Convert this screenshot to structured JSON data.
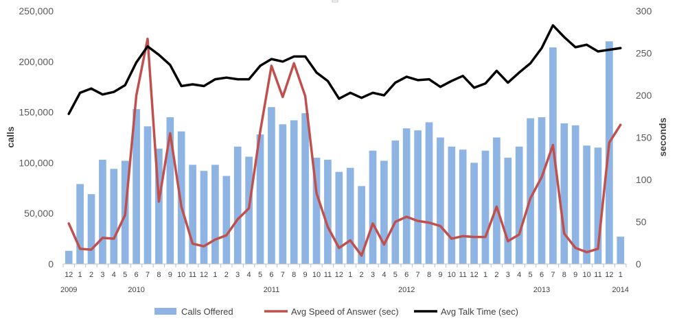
{
  "chart_data": {
    "type": "bar-line-combo",
    "title": "",
    "ylabel": "calls",
    "y2label": "seconds",
    "ylim": [
      0,
      250000
    ],
    "y2lim": [
      0,
      300
    ],
    "yticks": [
      "0",
      "50,000",
      "100,000",
      "150,000",
      "200,000",
      "250,000"
    ],
    "y2ticks": [
      "0",
      "50",
      "100",
      "150",
      "200",
      "250",
      "300"
    ],
    "month_labels": [
      "12",
      "1",
      "2",
      "3",
      "4",
      "5",
      "6",
      "7",
      "8",
      "9",
      "10",
      "11",
      "12",
      "1",
      "2",
      "3",
      "4",
      "5",
      "6",
      "7",
      "8",
      "9",
      "10",
      "11",
      "12",
      "1",
      "2",
      "3",
      "4",
      "5",
      "6",
      "7",
      "8",
      "9",
      "10",
      "11",
      "12",
      "1",
      "2",
      "3",
      "4",
      "5",
      "6",
      "7",
      "8",
      "9",
      "10",
      "11",
      "12",
      "1"
    ],
    "year_labels": [
      {
        "label": "2009",
        "index": 0
      },
      {
        "label": "2010",
        "index": 6
      },
      {
        "label": "2011",
        "index": 18
      },
      {
        "label": "2012",
        "index": 30
      },
      {
        "label": "2013",
        "index": 42
      },
      {
        "label": "2014",
        "index": 49
      }
    ],
    "series": [
      {
        "name": "Calls Offered",
        "type": "bar",
        "axis": "left",
        "color": "#8EB4E3",
        "values": [
          13000,
          79000,
          69000,
          103000,
          94000,
          102000,
          153000,
          136000,
          114000,
          145000,
          131000,
          98000,
          92000,
          98000,
          87000,
          116000,
          106000,
          128000,
          155000,
          138000,
          142000,
          149000,
          105000,
          103000,
          91000,
          95000,
          77000,
          112000,
          102000,
          122000,
          134000,
          132000,
          140000,
          125000,
          116000,
          113000,
          100000,
          112000,
          125000,
          105000,
          116000,
          144000,
          145000,
          214000,
          139000,
          137000,
          117000,
          115000,
          220000,
          27000
        ]
      },
      {
        "name": "Avg Speed of Answer (sec)",
        "type": "line",
        "axis": "right",
        "color": "#C0504D",
        "values": [
          48,
          18,
          17,
          31,
          30,
          58,
          200,
          267,
          74,
          155,
          68,
          24,
          21,
          29,
          34,
          53,
          66,
          157,
          235,
          198,
          238,
          199,
          84,
          44,
          19,
          28,
          10,
          48,
          23,
          50,
          56,
          51,
          49,
          45,
          30,
          33,
          32,
          32,
          68,
          27,
          35,
          78,
          103,
          141,
          36,
          19,
          14,
          18,
          144,
          165
        ]
      },
      {
        "name": "Avg Talk Time (sec)",
        "type": "line",
        "axis": "right",
        "color": "#000000",
        "values": [
          178,
          203,
          208,
          201,
          204,
          212,
          239,
          258,
          248,
          236,
          211,
          213,
          211,
          219,
          221,
          219,
          219,
          235,
          243,
          240,
          246,
          246,
          227,
          217,
          196,
          203,
          197,
          203,
          200,
          215,
          222,
          218,
          219,
          210,
          217,
          223,
          209,
          214,
          229,
          215,
          227,
          238,
          256,
          283,
          269,
          257,
          260,
          252,
          254,
          256
        ]
      }
    ],
    "legend": [
      "Calls Offered",
      "Avg Speed of Answer (sec)",
      "Avg Talk Time (sec)"
    ],
    "legend_position": "bottom"
  }
}
